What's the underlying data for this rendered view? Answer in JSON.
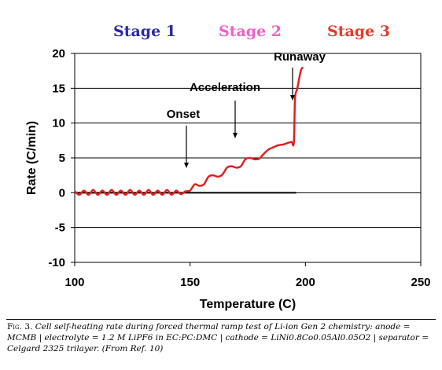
{
  "chart_data": {
    "type": "line",
    "title": "",
    "xlabel": "Temperature (C)",
    "ylabel": "Rate (C/min)",
    "xlim": [
      100,
      250
    ],
    "ylim": [
      -10,
      20
    ],
    "xticks": [
      "100",
      "150",
      "200",
      "250"
    ],
    "yticks": [
      "-10",
      "-5",
      "0",
      "5",
      "10",
      "15",
      "20"
    ],
    "grid": "horizontal",
    "stages": [
      {
        "label": "Stage 1",
        "color": "#2a2aa8"
      },
      {
        "label": "Stage 2",
        "color": "#f060c8"
      },
      {
        "label": "Stage 3",
        "color": "#e83a2a"
      }
    ],
    "annotations": [
      {
        "label": "Onset",
        "x": 150,
        "y": 0.5
      },
      {
        "label": "Acceleration",
        "x": 169,
        "y": 8.0
      },
      {
        "label": "Runaway",
        "x": 193.5,
        "y": 13.5
      }
    ],
    "baseline": {
      "x": [
        100,
        196
      ],
      "y": [
        0,
        0
      ],
      "color": "#000000"
    },
    "series": [
      {
        "color": "#e02020",
        "x": [
          100,
          102,
          104,
          106,
          108,
          110,
          112,
          114,
          116,
          118,
          120,
          122,
          124,
          126,
          128,
          130,
          132,
          134,
          136,
          138,
          140,
          142,
          144,
          146,
          148,
          150,
          152,
          154,
          156,
          158,
          160,
          162,
          164,
          166,
          168,
          170,
          172,
          174,
          176,
          178,
          180,
          182,
          184,
          186,
          188,
          190,
          192,
          194,
          195,
          195.5,
          196.5,
          198,
          199
        ],
        "y": [
          0.2,
          -0.3,
          0.3,
          -0.3,
          0.4,
          -0.3,
          0.3,
          -0.3,
          0.4,
          -0.3,
          0.3,
          -0.3,
          0.4,
          -0.3,
          0.3,
          -0.3,
          0.4,
          -0.3,
          0.3,
          -0.3,
          0.4,
          -0.3,
          0.3,
          -0.2,
          0.2,
          0.3,
          1.2,
          1.0,
          1.2,
          2.3,
          2.5,
          2.3,
          2.6,
          3.6,
          3.8,
          3.6,
          3.8,
          4.8,
          5.0,
          4.8,
          4.9,
          5.6,
          6.2,
          6.5,
          6.8,
          6.9,
          7.1,
          7.3,
          7.2,
          13.5,
          15.0,
          17.5,
          18.0
        ]
      }
    ]
  },
  "caption": {
    "label": "Fig. 3.",
    "text": "Cell self-heating rate during forced thermal ramp test of Li-ion Gen 2 chemistry: anode = MCMB | electrolyte = 1.2 M LiPF6 in EC:PC:DMC | cathode = LiNi0.8Co0.05Al0.05O2 | separator = Celgard 2325 trilayer. (From Ref. 10)"
  }
}
